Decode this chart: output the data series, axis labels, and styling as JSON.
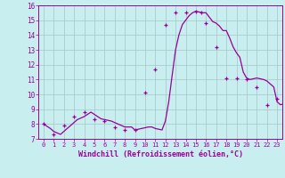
{
  "title": "",
  "xlabel": "Windchill (Refroidissement éolien,°C)",
  "ylabel": "",
  "bg_color": "#c8eef0",
  "line_color": "#990099",
  "marker_color": "#990099",
  "grid_color": "#aacccc",
  "xlim": [
    -0.5,
    23.5
  ],
  "ylim": [
    7,
    16
  ],
  "xtick_vals": [
    0,
    1,
    2,
    3,
    4,
    5,
    6,
    7,
    8,
    9,
    10,
    11,
    12,
    13,
    14,
    15,
    16,
    17,
    18,
    19,
    20,
    21,
    22,
    23
  ],
  "xtick_labels": [
    "0",
    "1",
    "2",
    "3",
    "4",
    "5",
    "6",
    "7",
    "8",
    "9",
    "10",
    "11",
    "12",
    "13",
    "14",
    "15",
    "16",
    "17",
    "18",
    "19",
    "20",
    "21",
    "22",
    "23"
  ],
  "ytick_vals": [
    7,
    8,
    9,
    10,
    11,
    12,
    13,
    14,
    15,
    16
  ],
  "ytick_labels": [
    "7",
    "8",
    "9",
    "10",
    "11",
    "12",
    "13",
    "14",
    "15",
    "16"
  ],
  "hours": [
    0,
    0.33,
    0.67,
    1,
    1.33,
    1.67,
    2,
    2.33,
    2.67,
    3,
    3.33,
    3.67,
    4,
    4.33,
    4.67,
    5,
    5.33,
    5.67,
    6,
    6.33,
    6.67,
    7,
    7.33,
    7.67,
    8,
    8.33,
    8.67,
    9,
    9.33,
    9.67,
    10,
    10.33,
    10.67,
    11,
    11.33,
    11.67,
    12,
    12.33,
    12.67,
    13,
    13.33,
    13.67,
    14,
    14.33,
    14.67,
    15,
    15.33,
    15.67,
    16,
    16.33,
    16.67,
    17,
    17.33,
    17.67,
    18,
    18.33,
    18.67,
    19,
    19.33,
    19.67,
    20,
    20.33,
    20.67,
    21,
    21.33,
    21.67,
    22,
    22.33,
    22.67,
    23,
    23.33,
    23.67
  ],
  "values": [
    8.0,
    7.85,
    7.7,
    7.5,
    7.4,
    7.3,
    7.5,
    7.7,
    7.9,
    8.1,
    8.3,
    8.4,
    8.5,
    8.65,
    8.8,
    8.65,
    8.5,
    8.35,
    8.3,
    8.25,
    8.2,
    8.1,
    8.0,
    7.9,
    7.8,
    7.8,
    7.8,
    7.6,
    7.65,
    7.7,
    7.75,
    7.8,
    7.8,
    7.7,
    7.65,
    7.6,
    8.2,
    9.5,
    11.3,
    13.0,
    14.0,
    14.7,
    15.0,
    15.3,
    15.5,
    15.6,
    15.55,
    15.5,
    15.5,
    15.2,
    14.9,
    14.8,
    14.6,
    14.3,
    14.3,
    13.8,
    13.2,
    12.8,
    12.5,
    11.5,
    11.1,
    11.0,
    11.05,
    11.1,
    11.05,
    11.0,
    10.9,
    10.7,
    10.5,
    9.5,
    9.3,
    9.35
  ],
  "marker_hours": [
    0,
    1,
    2,
    3,
    4,
    5,
    6,
    7,
    8,
    9,
    10,
    11,
    12,
    13,
    14,
    15,
    15.5,
    16,
    17,
    18,
    19,
    20,
    21,
    22,
    23
  ],
  "marker_values": [
    8.0,
    7.3,
    7.9,
    8.5,
    8.8,
    8.3,
    8.2,
    7.8,
    7.6,
    7.6,
    10.1,
    11.7,
    14.7,
    15.5,
    15.5,
    15.6,
    15.5,
    14.8,
    13.2,
    11.1,
    11.1,
    11.0,
    10.5,
    9.3,
    9.7
  ]
}
